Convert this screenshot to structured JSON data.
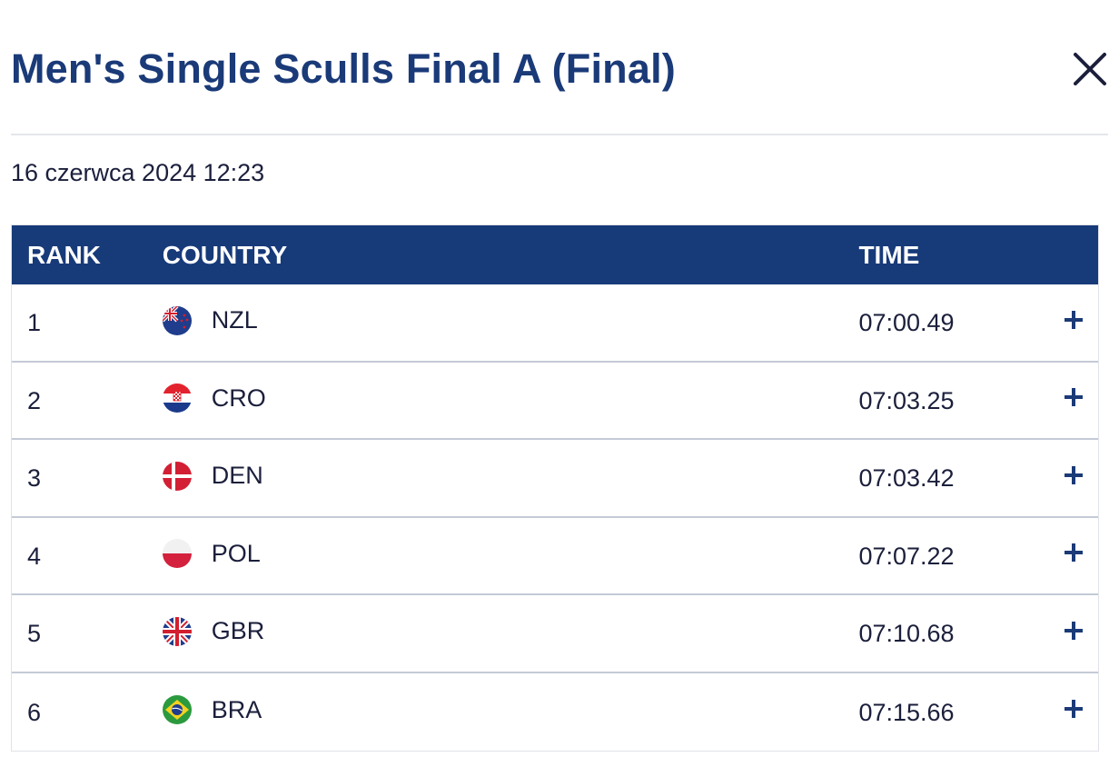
{
  "modal": {
    "title": "Men's Single Sculls Final A (Final)",
    "datetime": "16 czerwca 2024 12:23",
    "close_icon": "close-icon"
  },
  "table": {
    "headers": {
      "rank": "RANK",
      "country": "COUNTRY",
      "time": "TIME"
    },
    "rows": [
      {
        "rank": "1",
        "country": "NZL",
        "flag": "nzl-flag-icon",
        "time": "07:00.49"
      },
      {
        "rank": "2",
        "country": "CRO",
        "flag": "cro-flag-icon",
        "time": "07:03.25"
      },
      {
        "rank": "3",
        "country": "DEN",
        "flag": "den-flag-icon",
        "time": "07:03.42"
      },
      {
        "rank": "4",
        "country": "POL",
        "flag": "pol-flag-icon",
        "time": "07:07.22"
      },
      {
        "rank": "5",
        "country": "GBR",
        "flag": "gbr-flag-icon",
        "time": "07:10.68"
      },
      {
        "rank": "6",
        "country": "BRA",
        "flag": "bra-flag-icon",
        "time": "07:15.66"
      }
    ],
    "expand_icon": "plus-icon"
  },
  "colors": {
    "title": "#1a3a78",
    "header_bg": "#173a79",
    "header_text": "#ffffff",
    "text": "#1b1f3b",
    "divider": "#c4cad6"
  }
}
